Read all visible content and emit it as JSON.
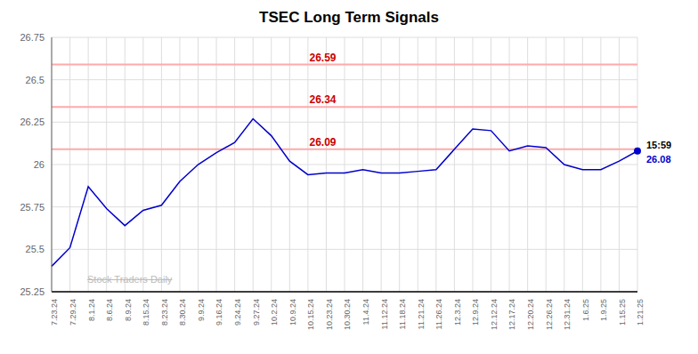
{
  "chart_data": {
    "type": "line",
    "title": "TSEC Long Term Signals",
    "categories": [
      "7.23.24",
      "7.29.24",
      "8.1.24",
      "8.6.24",
      "8.9.24",
      "8.15.24",
      "8.23.24",
      "8.30.24",
      "9.9.24",
      "9.16.24",
      "9.24.24",
      "9.27.24",
      "10.2.24",
      "10.9.24",
      "10.15.24",
      "10.23.24",
      "10.30.24",
      "11.4.24",
      "11.12.24",
      "11.18.24",
      "11.21.24",
      "11.26.24",
      "12.3.24",
      "12.9.24",
      "12.12.24",
      "12.17.24",
      "12.20.24",
      "12.26.24",
      "12.31.24",
      "1.6.25",
      "1.9.25",
      "1.15.25",
      "1.21.25"
    ],
    "values": [
      25.4,
      25.51,
      25.87,
      25.74,
      25.64,
      25.73,
      25.76,
      25.9,
      26.0,
      26.07,
      26.13,
      26.27,
      26.17,
      26.02,
      25.94,
      25.95,
      25.95,
      25.97,
      25.95,
      25.95,
      25.96,
      25.97,
      26.09,
      26.21,
      26.2,
      26.08,
      26.11,
      26.1,
      26.0,
      25.97,
      25.97,
      26.02,
      26.08
    ],
    "color": "#0000cc",
    "ylim": [
      25.25,
      26.75
    ],
    "yticks": [
      25.25,
      25.5,
      25.75,
      26,
      26.25,
      26.5,
      26.75
    ],
    "grid": true,
    "hlines": [
      {
        "value": 26.59,
        "label": "26.59",
        "color": "#ffaaaa",
        "label_color": "#cc0000"
      },
      {
        "value": 26.34,
        "label": "26.34",
        "color": "#ffaaaa",
        "label_color": "#cc0000"
      },
      {
        "value": 26.09,
        "label": "26.09",
        "color": "#ffaaaa",
        "label_color": "#cc0000"
      }
    ],
    "annotations": [
      {
        "text": "15:59",
        "color": "#000000"
      },
      {
        "text": "26.08",
        "color": "#0000cc"
      }
    ],
    "watermark": {
      "text": "Stock Traders Daily",
      "color": "#bbbbbb"
    }
  }
}
